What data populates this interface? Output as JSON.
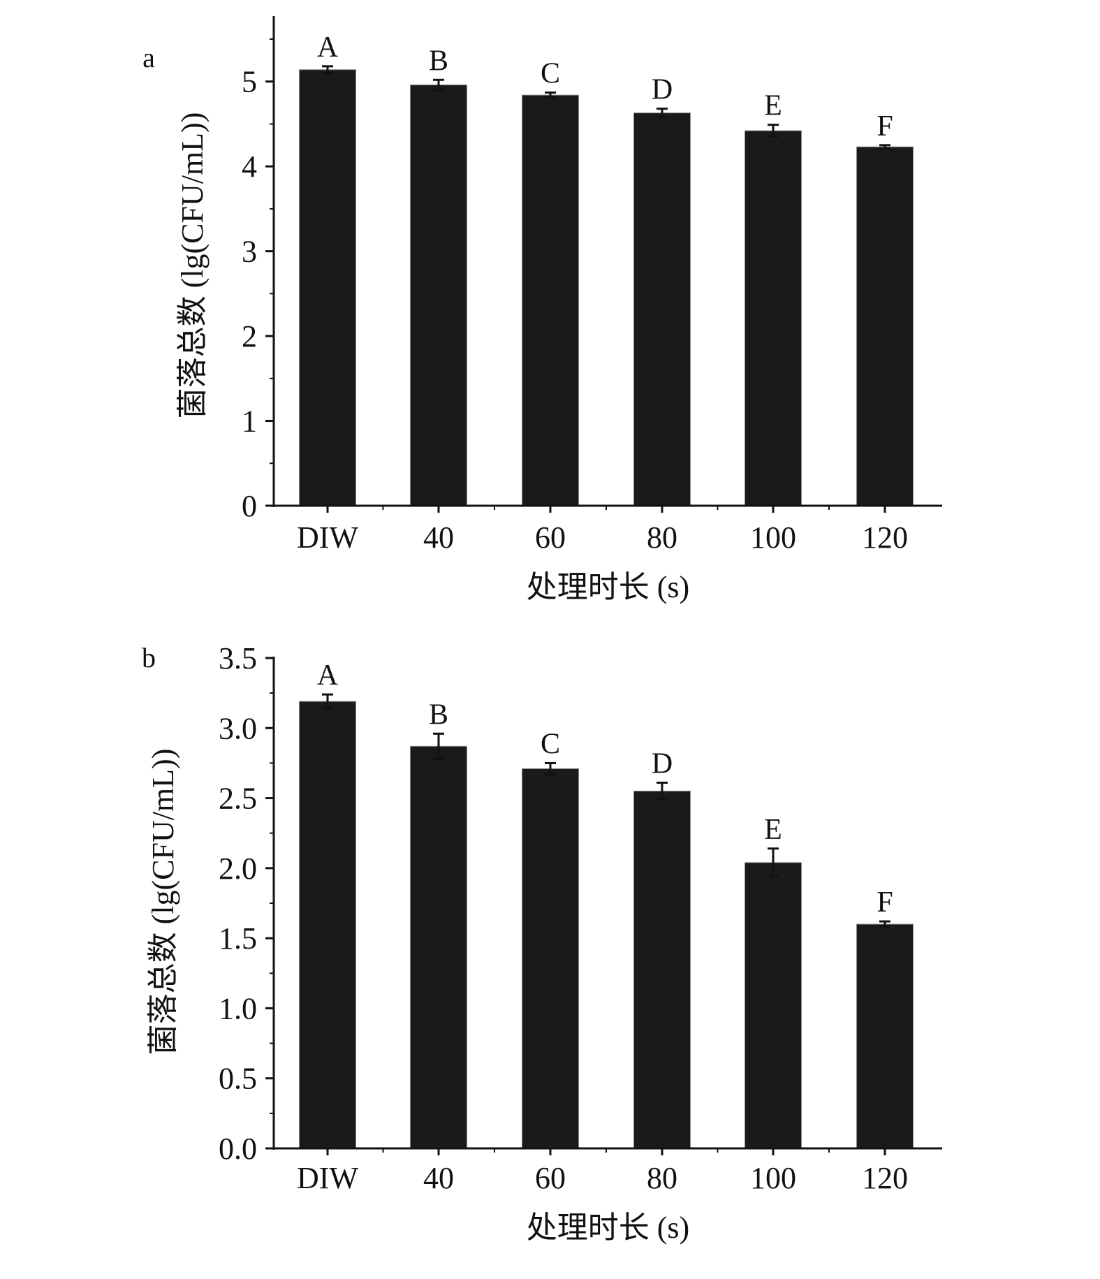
{
  "chart_data": [
    {
      "type": "bar",
      "panel_label": "a",
      "categories": [
        "DIW",
        "40",
        "60",
        "80",
        "100",
        "120"
      ],
      "values": [
        5.14,
        4.96,
        4.84,
        4.63,
        4.42,
        4.23
      ],
      "errors": [
        0.04,
        0.06,
        0.03,
        0.05,
        0.07,
        0.02
      ],
      "significance_letters": [
        "A",
        "B",
        "C",
        "D",
        "E",
        "F"
      ],
      "xlabel": "处理时长 (s)",
      "ylabel": "菌落总数 (lg(CFU/mL))",
      "ylim": [
        0,
        5.5
      ],
      "yticks": [
        0,
        1,
        2,
        3,
        4,
        5
      ],
      "ytick_labels": [
        "0",
        "1",
        "2",
        "3",
        "4",
        "5"
      ],
      "minor_step": 0.5,
      "grid": false,
      "bar_color": "#1a1a1a"
    },
    {
      "type": "bar",
      "panel_label": "b",
      "categories": [
        "DIW",
        "40",
        "60",
        "80",
        "100",
        "120"
      ],
      "values": [
        3.19,
        2.87,
        2.71,
        2.55,
        2.04,
        1.6
      ],
      "errors": [
        0.05,
        0.09,
        0.04,
        0.06,
        0.1,
        0.02
      ],
      "significance_letters": [
        "A",
        "B",
        "C",
        "D",
        "E",
        "F"
      ],
      "xlabel": "处理时长 (s)",
      "ylabel": "菌落总数 (lg(CFU/mL))",
      "ylim": [
        0,
        3.5
      ],
      "yticks": [
        0,
        0.5,
        1.0,
        1.5,
        2.0,
        2.5,
        3.0,
        3.5
      ],
      "ytick_labels": [
        "0.0",
        "0.5",
        "1.0",
        "1.5",
        "2.0",
        "2.5",
        "3.0",
        "3.5"
      ],
      "minor_step": 0.25,
      "grid": false,
      "bar_color": "#1a1a1a"
    }
  ]
}
